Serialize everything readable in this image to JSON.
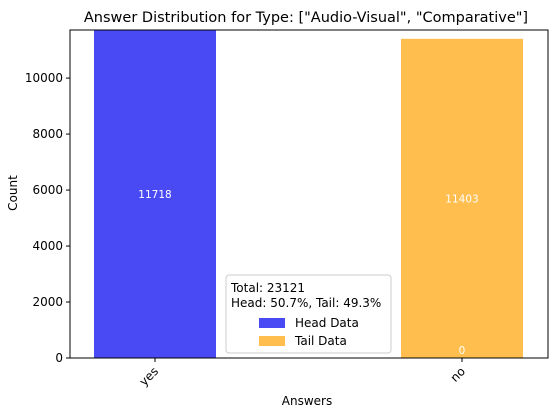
{
  "chart_data": {
    "type": "bar",
    "title": "Answer Distribution for Type: [\"Audio-Visual\", \"Comparative\"]",
    "xlabel": "Answers",
    "ylabel": "Count",
    "categories": [
      "yes",
      "no"
    ],
    "series": [
      {
        "name": "Head Data",
        "color": "#4a4af5",
        "values": [
          11718,
          0
        ]
      },
      {
        "name": "Tail Data",
        "color": "#ffbe4d",
        "values": [
          0,
          11403
        ]
      }
    ],
    "bar_labels": [
      {
        "category": "yes",
        "series": "Head Data",
        "text": "11718"
      },
      {
        "category": "no",
        "series": "Tail Data",
        "text": "11403"
      },
      {
        "category": "no",
        "series": "Head Data",
        "text": "0"
      }
    ],
    "ylim": [
      0,
      11718
    ],
    "yticks": [
      0,
      2000,
      4000,
      6000,
      8000,
      10000
    ],
    "grid": false,
    "legend": {
      "placement": "bottom-center",
      "title_lines": [
        "Total: 23121",
        "Head: 50.7%, Tail: 49.3%"
      ]
    }
  }
}
